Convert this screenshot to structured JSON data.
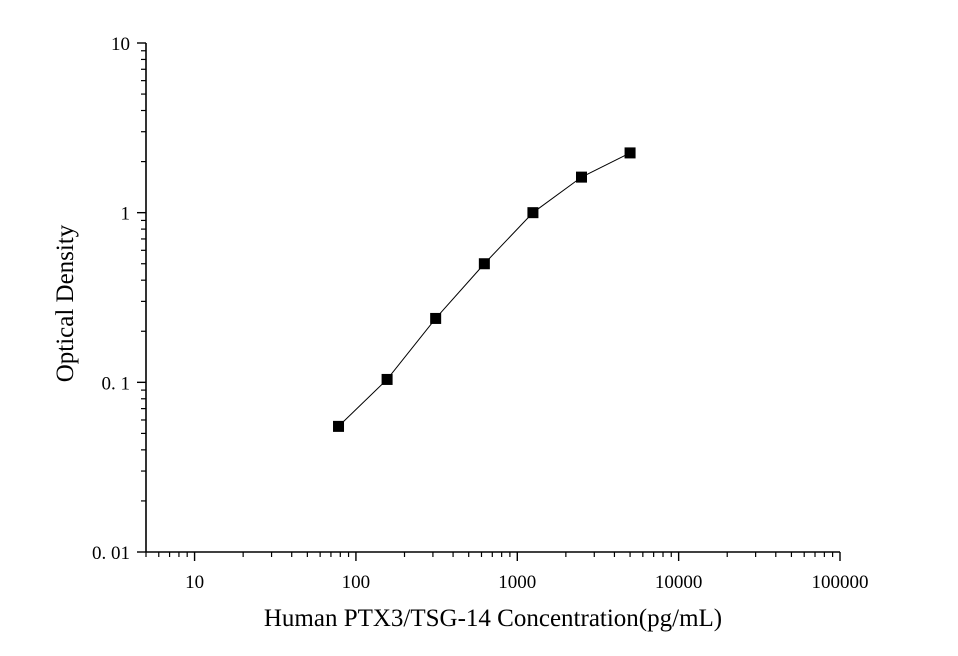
{
  "chart_data": {
    "type": "line",
    "xlabel": "Human PTX3/TSG-14 Concentration(pg/mL)",
    "ylabel": "Optical Density",
    "x_scale": "log",
    "y_scale": "log",
    "xlim": [
      5,
      100000
    ],
    "ylim": [
      0.01,
      10
    ],
    "x_ticks": [
      {
        "value": 10,
        "label": "10"
      },
      {
        "value": 100,
        "label": "100"
      },
      {
        "value": 1000,
        "label": "1000"
      },
      {
        "value": 10000,
        "label": "10000"
      },
      {
        "value": 100000,
        "label": "100000"
      }
    ],
    "y_ticks": [
      {
        "value": 0.01,
        "label": "0. 01"
      },
      {
        "value": 0.1,
        "label": "0. 1"
      },
      {
        "value": 1,
        "label": "1"
      },
      {
        "value": 10,
        "label": "10"
      }
    ],
    "grid": false,
    "marker": "square",
    "colors": {
      "series": "#000000",
      "axis": "#000000"
    },
    "series": [
      {
        "x": [
          78,
          156,
          312,
          625,
          1250,
          2500,
          5000
        ],
        "y": [
          0.055,
          0.104,
          0.238,
          0.5,
          1.0,
          1.62,
          2.25
        ]
      }
    ]
  }
}
